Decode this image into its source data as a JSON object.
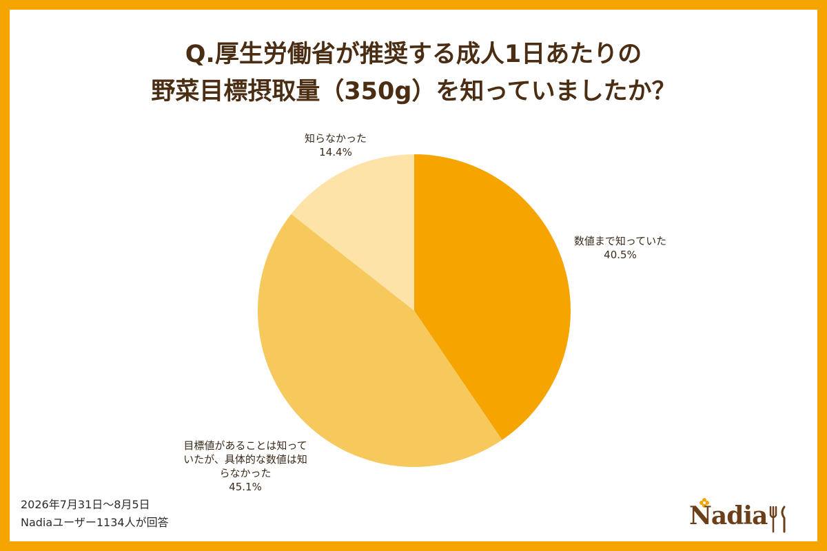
{
  "title": {
    "line1": "Q.厚生労働省が推奨する成人1日あたりの",
    "line2": "野菜目標摂取量（350g）を知っていましたか？"
  },
  "chart_data": {
    "type": "pie",
    "title": "Q.厚生労働省が推奨する成人1日あたりの野菜目標摂取量（350g）を知っていましたか？",
    "slices": [
      {
        "label_lines": [
          "数値まで知っていた"
        ],
        "value": 40.5,
        "value_label": "40.5%",
        "color": "#f5a400"
      },
      {
        "label_lines": [
          "目標値があることは知って",
          "いたが、具体的な数値は知",
          "らなかった"
        ],
        "value": 45.1,
        "value_label": "45.1%",
        "color": "#f7c85c"
      },
      {
        "label_lines": [
          "知らなかった"
        ],
        "value": 14.4,
        "value_label": "14.4%",
        "color": "#fde3a8"
      }
    ],
    "start_angle": "12 o'clock",
    "direction": "clockwise"
  },
  "footer": {
    "date": "2026年7月31日〜8月5日",
    "respondents": "Nadiaユーザー1134人が回答"
  },
  "logo": {
    "text": "Nadia",
    "icon": "cutlery-icon",
    "flower_icon": "flower-icon",
    "color": "#6b3f1a",
    "accent": "#f5a400"
  },
  "colors": {
    "border": "#f5a400",
    "title": "#4a2d12"
  }
}
